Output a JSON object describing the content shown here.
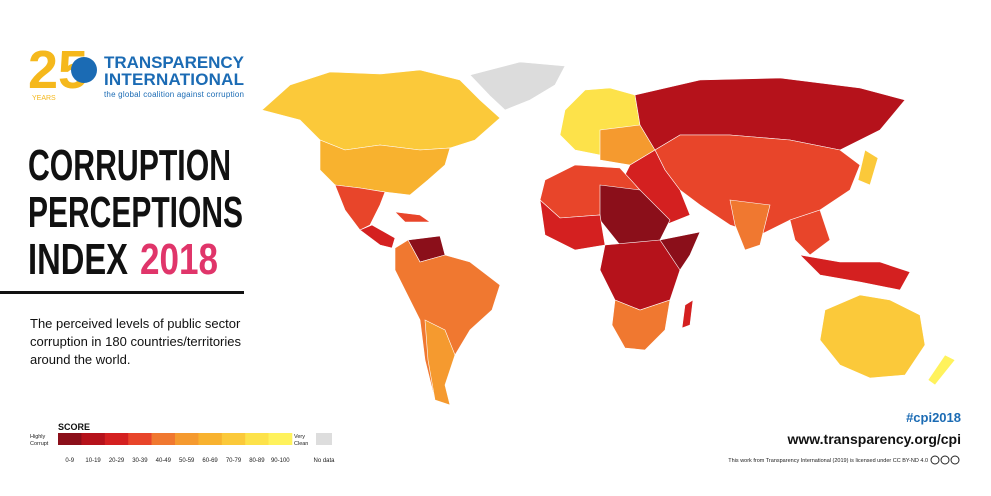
{
  "logo": {
    "number": "25",
    "years": "YEARS",
    "org_line1": "TRANSPARENCY",
    "org_line2": "INTERNATIONAL",
    "tagline": "the global coalition against corruption"
  },
  "title": {
    "line1": "CORRUPTION",
    "line2": "PERCEPTIONS",
    "line3": "INDEX",
    "year": "2018"
  },
  "description": [
    "The perceived levels of public sector",
    "corruption in 180 countries/territories",
    "around the world."
  ],
  "legend": {
    "title": "SCORE",
    "low_label": [
      "Highly",
      "Corrupt"
    ],
    "high_label": [
      "Very",
      "Clean"
    ],
    "bins": [
      {
        "label": "0-9",
        "color": "#8b0f1a"
      },
      {
        "label": "10-19",
        "color": "#b5121b"
      },
      {
        "label": "20-29",
        "color": "#d42020"
      },
      {
        "label": "30-39",
        "color": "#e8452a"
      },
      {
        "label": "40-49",
        "color": "#f07830"
      },
      {
        "label": "50-59",
        "color": "#f59a2f"
      },
      {
        "label": "60-69",
        "color": "#f8b22f"
      },
      {
        "label": "70-79",
        "color": "#fbc93a"
      },
      {
        "label": "80-89",
        "color": "#fde24a"
      },
      {
        "label": "90-100",
        "color": "#fff25c"
      }
    ],
    "no_data": {
      "label": "No data",
      "color": "#dddddd"
    }
  },
  "footer": {
    "hashtag": "#cpi2018",
    "url": "www.transparency.org/cpi",
    "license": "This work from Transparency International (2019) is licensed under CC BY-ND 4.0"
  }
}
